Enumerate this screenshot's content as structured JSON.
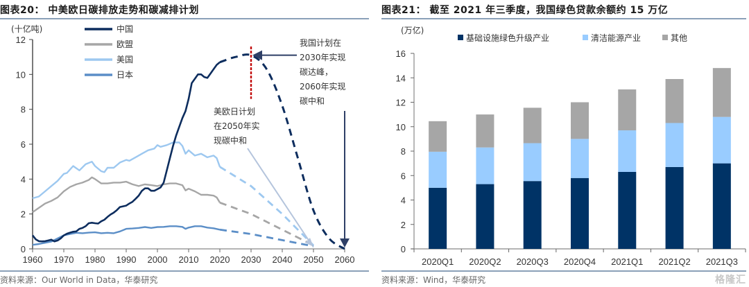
{
  "left_panel": {
    "title": "图表20： 中美欧日碳排放走势和碳减排计划",
    "source": "资料来源：Our World in Data，华泰研究"
  },
  "right_panel": {
    "title": "图表21： 截至 2021 年三季度，我国绿色贷款余额约 15 万亿",
    "source": "资料来源：Wind，华泰研究"
  },
  "watermark": "格隆汇",
  "colors": {
    "china": "#0d2d5e",
    "eu": "#a6a6a6",
    "us": "#9dc8f0",
    "japan": "#5b8ec7",
    "peak_marker": "#c00000",
    "infra": "#003366",
    "clean": "#99ccff",
    "other": "#a6a6a6",
    "arrow": "#2e3f66",
    "arrow_light": "#b4c4dc"
  },
  "chart_data": [
    {
      "type": "line",
      "title": "中美欧日碳排放走势和碳减排计划",
      "ylabel": "(十亿吨)",
      "xlabel": "",
      "xlim": [
        1960,
        2060
      ],
      "ylim": [
        0,
        12
      ],
      "xticks": [
        "1960",
        "1970",
        "1980",
        "1990",
        "2000",
        "2010",
        "2020",
        "2030",
        "2040",
        "2050",
        "2060"
      ],
      "yticks": [
        "0",
        "2",
        "4",
        "6",
        "8",
        "10",
        "12"
      ],
      "legend": [
        "中国",
        "欧盟",
        "美国",
        "日本"
      ],
      "legend_position": "top-left",
      "series": [
        {
          "name": "中国",
          "key": "china",
          "x": [
            1960,
            1961,
            1962,
            1963,
            1964,
            1965,
            1966,
            1967,
            1968,
            1969,
            1970,
            1971,
            1972,
            1973,
            1974,
            1975,
            1976,
            1977,
            1978,
            1979,
            1980,
            1981,
            1982,
            1983,
            1984,
            1985,
            1986,
            1987,
            1988,
            1989,
            1990,
            1991,
            1992,
            1993,
            1994,
            1995,
            1996,
            1997,
            1998,
            1999,
            2000,
            2001,
            2002,
            2003,
            2004,
            2005,
            2006,
            2007,
            2008,
            2009,
            2010,
            2011,
            2012,
            2013,
            2014,
            2015,
            2016,
            2017,
            2018,
            2019,
            2020
          ],
          "values": [
            0.78,
            0.55,
            0.44,
            0.43,
            0.44,
            0.48,
            0.53,
            0.43,
            0.48,
            0.6,
            0.77,
            0.87,
            0.93,
            0.98,
            1.0,
            1.15,
            1.2,
            1.3,
            1.47,
            1.5,
            1.47,
            1.45,
            1.58,
            1.67,
            1.83,
            1.97,
            2.08,
            2.22,
            2.4,
            2.44,
            2.48,
            2.6,
            2.7,
            2.87,
            3.05,
            3.32,
            3.47,
            3.47,
            3.33,
            3.33,
            3.42,
            3.52,
            3.8,
            4.5,
            5.2,
            5.9,
            6.5,
            7.0,
            7.5,
            7.9,
            8.6,
            9.5,
            9.75,
            10.0,
            10.0,
            9.85,
            9.8,
            10.05,
            10.3,
            10.55,
            10.7
          ],
          "projection": {
            "x": [
              2020,
              2025,
              2030,
              2035,
              2040,
              2045,
              2050,
              2055,
              2060
            ],
            "values": [
              10.7,
              11.0,
              11.1,
              10.3,
              8.2,
              5.2,
              2.2,
              0.6,
              0.0
            ]
          }
        },
        {
          "name": "欧盟",
          "key": "eu",
          "x": [
            1960,
            1962,
            1964,
            1966,
            1968,
            1970,
            1972,
            1974,
            1976,
            1978,
            1979,
            1980,
            1982,
            1984,
            1986,
            1988,
            1990,
            1992,
            1994,
            1996,
            1998,
            2000,
            2002,
            2004,
            2006,
            2008,
            2009,
            2010,
            2012,
            2014,
            2016,
            2018,
            2019,
            2020
          ],
          "values": [
            2.1,
            2.35,
            2.6,
            2.75,
            2.95,
            3.3,
            3.55,
            3.7,
            3.8,
            3.95,
            4.1,
            4.0,
            3.75,
            3.75,
            3.8,
            3.8,
            3.85,
            3.7,
            3.6,
            3.7,
            3.65,
            3.6,
            3.7,
            3.75,
            3.75,
            3.65,
            3.35,
            3.45,
            3.3,
            3.1,
            3.1,
            3.05,
            2.95,
            2.65
          ],
          "projection": {
            "x": [
              2020,
              2030,
              2040,
              2050
            ],
            "values": [
              2.65,
              2.0,
              1.1,
              0.2
            ]
          }
        },
        {
          "name": "美国",
          "key": "us",
          "x": [
            1960,
            1962,
            1964,
            1966,
            1968,
            1970,
            1971,
            1973,
            1975,
            1977,
            1979,
            1980,
            1982,
            1983,
            1984,
            1986,
            1988,
            1990,
            1991,
            1993,
            1995,
            1997,
            1999,
            2000,
            2001,
            2003,
            2005,
            2007,
            2008,
            2009,
            2010,
            2012,
            2014,
            2016,
            2018,
            2019,
            2020
          ],
          "values": [
            2.9,
            3.0,
            3.3,
            3.6,
            3.9,
            4.3,
            4.35,
            4.75,
            4.5,
            4.85,
            5.0,
            4.75,
            4.45,
            4.4,
            4.65,
            4.65,
            4.95,
            5.1,
            5.05,
            5.25,
            5.45,
            5.65,
            5.75,
            5.95,
            5.85,
            5.95,
            6.1,
            6.1,
            5.9,
            5.45,
            5.65,
            5.35,
            5.45,
            5.25,
            5.35,
            5.2,
            4.7
          ],
          "projection": {
            "x": [
              2020,
              2030,
              2040,
              2050
            ],
            "values": [
              4.7,
              3.6,
              2.0,
              0.2
            ]
          }
        },
        {
          "name": "日本",
          "key": "japan",
          "x": [
            1960,
            1962,
            1964,
            1966,
            1968,
            1970,
            1972,
            1974,
            1976,
            1978,
            1980,
            1982,
            1984,
            1986,
            1988,
            1990,
            1992,
            1994,
            1996,
            1998,
            2000,
            2002,
            2004,
            2006,
            2008,
            2009,
            2010,
            2012,
            2014,
            2016,
            2018,
            2020
          ],
          "values": [
            0.23,
            0.28,
            0.35,
            0.42,
            0.6,
            0.78,
            0.85,
            0.92,
            0.9,
            0.93,
            0.95,
            0.9,
            0.92,
            0.9,
            1.0,
            1.15,
            1.17,
            1.2,
            1.25,
            1.2,
            1.25,
            1.26,
            1.3,
            1.3,
            1.26,
            1.15,
            1.22,
            1.3,
            1.3,
            1.22,
            1.18,
            1.1
          ],
          "projection": {
            "x": [
              2020,
              2030,
              2040,
              2050
            ],
            "values": [
              1.1,
              0.85,
              0.5,
              0.15
            ]
          }
        }
      ],
      "annotations": [
        {
          "key": "china_note",
          "lines": [
            "我国计划在",
            "2030年实现",
            "碳达峰，",
            "2060年实现",
            "碳中和"
          ]
        },
        {
          "key": "west_note",
          "lines": [
            "美欧日计划",
            "在2050年实",
            "现碳中和"
          ]
        }
      ],
      "markers": {
        "peak_year": 2030,
        "china_neutral_year": 2060,
        "west_neutral_year": 2050
      }
    },
    {
      "type": "bar",
      "stacked": true,
      "title": "截至 2021 年三季度，我国绿色贷款余额约 15 万亿",
      "ylabel": "(万亿)",
      "xlabel": "",
      "ylim": [
        0,
        16
      ],
      "yticks": [
        "0",
        "2",
        "4",
        "6",
        "8",
        "10",
        "12",
        "14",
        "16"
      ],
      "categories": [
        "2020Q1",
        "2020Q2",
        "2020Q3",
        "2020Q4",
        "2021Q1",
        "2021Q2",
        "2021Q3"
      ],
      "legend_position": "top",
      "series": [
        {
          "name": "基础设施绿色升级产业",
          "key": "infra",
          "values": [
            5.0,
            5.3,
            5.55,
            5.8,
            6.3,
            6.7,
            7.0
          ]
        },
        {
          "name": "清洁能源产业",
          "key": "clean",
          "values": [
            2.95,
            3.0,
            3.1,
            3.2,
            3.4,
            3.6,
            3.8
          ]
        },
        {
          "name": "其他",
          "key": "other",
          "values": [
            2.5,
            2.7,
            2.9,
            3.0,
            3.35,
            3.6,
            4.0
          ]
        }
      ]
    }
  ]
}
